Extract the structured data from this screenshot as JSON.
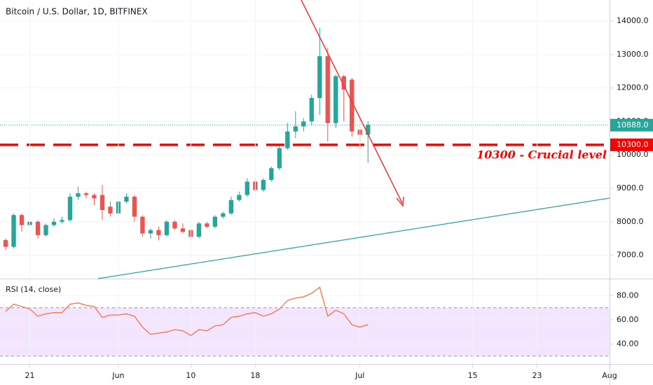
{
  "chart_data": [
    {
      "type": "candlestick",
      "title": "Bitcoin / U.S. Dollar, 1D, BITFINEX",
      "x": [
        18,
        19,
        20,
        21,
        22,
        23,
        24,
        25,
        26,
        27,
        28,
        29,
        30,
        31,
        32,
        33,
        34,
        35,
        36,
        37,
        38,
        39,
        40,
        41,
        42,
        43,
        44,
        45,
        46,
        47,
        48,
        49,
        50,
        51,
        52,
        53,
        54,
        55,
        56,
        57,
        58,
        59,
        60,
        61,
        62,
        63
      ],
      "open": [
        7450,
        7250,
        8200,
        7900,
        8000,
        7600,
        7900,
        8000,
        8050,
        8750,
        8850,
        8800,
        8800,
        8450,
        8250,
        8600,
        8750,
        8150,
        7650,
        7750,
        7600,
        8000,
        7800,
        7750,
        7550,
        7950,
        7850,
        8150,
        8250,
        8650,
        8800,
        9200,
        8950,
        9250,
        9600,
        10200,
        10700,
        10850,
        11000,
        11700,
        12950,
        10950,
        12350,
        12250,
        10750,
        10600
      ],
      "high": [
        7500,
        8250,
        8250,
        8050,
        8050,
        7950,
        8100,
        8150,
        8850,
        9050,
        8900,
        8850,
        9100,
        8600,
        8700,
        8850,
        8800,
        8200,
        7800,
        7850,
        8050,
        8050,
        7950,
        7800,
        8000,
        8000,
        8200,
        8300,
        8750,
        8900,
        9300,
        9300,
        9300,
        9650,
        10300,
        10950,
        11300,
        11100,
        11800,
        13800,
        13200,
        12400,
        12400,
        12300,
        11100,
        11000
      ],
      "low": [
        7150,
        7200,
        7700,
        7750,
        7500,
        7550,
        7850,
        7950,
        8000,
        8650,
        8700,
        8500,
        8050,
        8150,
        8150,
        8550,
        8000,
        7550,
        7500,
        7450,
        7550,
        7750,
        7650,
        7450,
        7500,
        7800,
        7800,
        8100,
        8200,
        8600,
        8750,
        8900,
        8900,
        9200,
        9550,
        10150,
        10500,
        10700,
        10900,
        11200,
        10400,
        10800,
        11000,
        10550,
        10150,
        9750
      ],
      "close": [
        7250,
        8200,
        7900,
        8000,
        7600,
        7900,
        8000,
        8050,
        8750,
        8850,
        8800,
        8700,
        8350,
        8250,
        8600,
        8750,
        8150,
        7650,
        7750,
        7600,
        8000,
        7800,
        7700,
        7550,
        7950,
        7850,
        8150,
        8250,
        8650,
        8800,
        9200,
        8950,
        9250,
        9600,
        10200,
        10700,
        10850,
        11000,
        11700,
        12950,
        10950,
        12350,
        11950,
        10700,
        10600,
        10900
      ],
      "up_color": "#26a69a",
      "down_color": "#ef5350",
      "xlim": [
        17.3,
        93
      ],
      "ylim": [
        6300,
        14630
      ],
      "yticks": [
        {
          "value": 7000,
          "label": "7000.0"
        },
        {
          "value": 8000,
          "label": "8000.0"
        },
        {
          "value": 9000,
          "label": "9000.0"
        },
        {
          "value": 10000,
          "label": "10000.0"
        },
        {
          "value": 11000,
          "label": "11000.0"
        },
        {
          "value": 12000,
          "label": "12000.0"
        },
        {
          "value": 13000,
          "label": "13000.0"
        },
        {
          "value": 14000,
          "label": "14000.0"
        }
      ],
      "grid": true,
      "last_price": {
        "value": 10888,
        "label": "10888.0",
        "color": "#26a69a"
      },
      "level": {
        "value": 10300,
        "label": "10300.0",
        "color": "#ff0000",
        "annotation": "10300 - Crucial level"
      }
    },
    {
      "type": "line",
      "title": "RSI (14, close)",
      "x": [
        18,
        19,
        20,
        21,
        22,
        23,
        24,
        25,
        26,
        27,
        28,
        29,
        30,
        31,
        32,
        33,
        34,
        35,
        36,
        37,
        38,
        39,
        40,
        41,
        42,
        43,
        44,
        45,
        46,
        47,
        48,
        49,
        50,
        51,
        52,
        53,
        54,
        55,
        56,
        57,
        58,
        59,
        60,
        61,
        62,
        63
      ],
      "values": [
        67,
        73,
        71,
        69,
        63,
        65,
        66,
        66,
        73,
        74,
        72,
        71,
        62,
        64,
        64,
        65,
        63,
        54,
        48,
        49,
        50,
        52,
        51,
        47,
        52,
        51,
        55,
        56,
        62,
        63,
        65,
        66,
        63,
        65,
        69,
        76,
        78,
        79,
        82,
        87,
        63,
        68,
        65,
        56,
        54,
        56
      ],
      "color": "#ff7043",
      "band": [
        30,
        70
      ],
      "band_color": "#f3e5fd",
      "xlim": [
        17.3,
        93
      ],
      "ylim": [
        23.5,
        94.1
      ],
      "yticks": [
        {
          "value": 40,
          "label": "40.00"
        },
        {
          "value": 60,
          "label": "60.00"
        },
        {
          "value": 80,
          "label": "80.00"
        }
      ],
      "xticks": [
        21,
        {
          "value": 32,
          "label": "Jun"
        },
        {
          "value": 41,
          "label": "10"
        },
        {
          "value": 49,
          "label": "18"
        },
        {
          "value": 62,
          "label": "Jul"
        },
        {
          "value": 76,
          "label": "15"
        },
        {
          "value": 84,
          "label": "23"
        },
        {
          "value": 93,
          "label": "Aug"
        }
      ]
    }
  ]
}
